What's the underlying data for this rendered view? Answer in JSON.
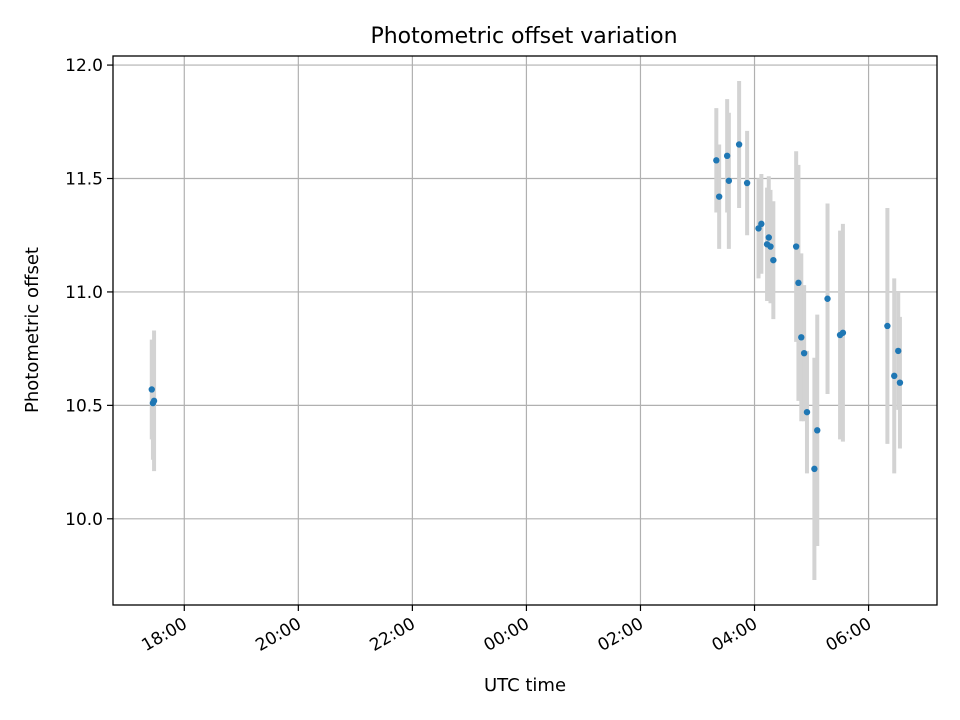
{
  "chart_data": {
    "type": "scatter",
    "title": "Photometric offset variation",
    "xlabel": "UTC time",
    "ylabel": "Photometric offset",
    "x_tick_labels": [
      "18:00",
      "20:00",
      "22:00",
      "00:00",
      "02:00",
      "04:00",
      "06:00"
    ],
    "y_tick_labels": [
      "10.0",
      "10.5",
      "11.0",
      "11.5",
      "12.0"
    ],
    "y_ticks": [
      10.0,
      10.5,
      11.0,
      11.5,
      12.0
    ],
    "ylim": [
      9.62,
      12.04
    ],
    "xlim_hours": [
      16.75,
      31.2
    ],
    "grid": true,
    "point_color": "#1f77b4",
    "errorbar_color": "#d3d3d3",
    "series": [
      {
        "x_hours": [
          17.43,
          17.45,
          17.47,
          27.33,
          27.38,
          27.52,
          27.55,
          27.73,
          27.87,
          28.07,
          28.12,
          28.22,
          28.25,
          28.28,
          28.33,
          28.73,
          28.77,
          28.82,
          28.87,
          28.92,
          29.05,
          29.1,
          29.28,
          29.5,
          29.55,
          30.33,
          30.45,
          30.52,
          30.55
        ],
        "y": [
          10.57,
          10.51,
          10.52,
          11.58,
          11.42,
          11.6,
          11.49,
          11.65,
          11.48,
          11.28,
          11.3,
          11.21,
          11.24,
          11.2,
          11.14,
          11.2,
          11.04,
          10.8,
          10.73,
          10.47,
          10.22,
          10.39,
          10.97,
          10.81,
          10.82,
          10.85,
          10.63,
          10.74,
          10.6
        ],
        "yerr": [
          0.22,
          0.25,
          0.31,
          0.23,
          0.23,
          0.25,
          0.3,
          0.28,
          0.23,
          0.22,
          0.22,
          0.25,
          0.27,
          0.25,
          0.26,
          0.42,
          0.52,
          0.37,
          0.3,
          0.27,
          0.49,
          0.51,
          0.42,
          0.46,
          0.48,
          0.52,
          0.43,
          0.26,
          0.29
        ]
      }
    ]
  }
}
